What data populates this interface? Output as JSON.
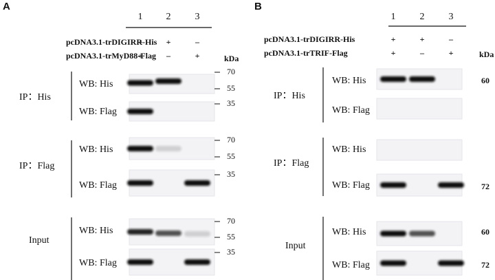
{
  "panels": [
    {
      "letter": "A",
      "lanes": [
        "1",
        "2",
        "3"
      ],
      "constructs": [
        {
          "name": "pcDNA3.1-trDIGIRR-His",
          "signs": [
            "+",
            "+",
            "–"
          ]
        },
        {
          "name": "pcDNA3.1-trMyD88-Flag",
          "signs": [
            "+",
            "–",
            "+"
          ]
        }
      ],
      "kda": "kDa",
      "groups": [
        {
          "label": "IP：His",
          "blots": [
            {
              "label": "WB: His",
              "markers": [
                70,
                55
              ]
            },
            {
              "label": "WB: Flag",
              "markers": [
                35
              ]
            }
          ]
        },
        {
          "label": "IP：Flag",
          "blots": [
            {
              "label": "WB: His",
              "markers": [
                70,
                55
              ]
            },
            {
              "label": "WB: Flag",
              "markers": [
                35
              ]
            }
          ]
        },
        {
          "label": "Input",
          "blots": [
            {
              "label": "WB: His",
              "markers": [
                70,
                55
              ]
            },
            {
              "label": "WB: Flag",
              "markers": [
                35
              ]
            }
          ]
        }
      ]
    },
    {
      "letter": "B",
      "lanes": [
        "1",
        "2",
        "3"
      ],
      "constructs": [
        {
          "name": "pcDNA3.1-trDIGIRR-His",
          "signs": [
            "+",
            "+",
            "–"
          ]
        },
        {
          "name": "pcDNA3.1-trTRIF-Flag",
          "signs": [
            "+",
            "–",
            "+"
          ]
        }
      ],
      "kda": "kDa",
      "groups": [
        {
          "label": "IP：His",
          "blots": [
            {
              "label": "WB: His",
              "markers": [
                60
              ]
            },
            {
              "label": "WB: Flag",
              "markers": []
            }
          ]
        },
        {
          "label": "IP：Flag",
          "blots": [
            {
              "label": "WB: His",
              "markers": []
            },
            {
              "label": "WB: Flag",
              "markers": [
                72
              ]
            }
          ]
        },
        {
          "label": "Input",
          "blots": [
            {
              "label": "WB: His",
              "markers": [
                60
              ]
            },
            {
              "label": "WB: Flag",
              "markers": [
                72
              ]
            }
          ]
        }
      ]
    }
  ]
}
